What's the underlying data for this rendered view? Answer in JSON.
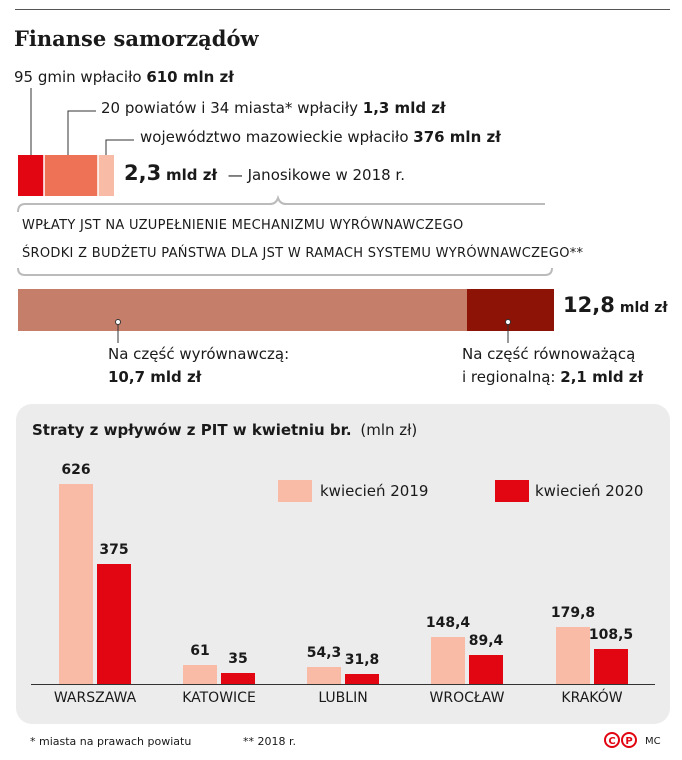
{
  "title": "Finanse samorządów",
  "janosik": {
    "items": [
      {
        "text": "95 gmin wpłaciło ",
        "value": "610 mln zł",
        "color": "#e20613"
      },
      {
        "text": "20 powiatów i 34 miasta* wpłaciły ",
        "value": "1,3 mld zł",
        "color": "#ee7356"
      },
      {
        "text": "województwo mazowieckie wpłaciło ",
        "value": "376 mln zł",
        "color": "#f7bba6"
      }
    ],
    "total_value": "2,3",
    "total_unit": "mld zł",
    "total_text": "— Janosikowe w 2018 r."
  },
  "mechanism": {
    "line1": "WPŁATY JST NA UZUPEŁNIENIE MECHANIZMU WYRÓWNAWCZEGO",
    "line2": "ŚRODKI Z BUDŻETU PAŃSTWA DLA JST W RAMACH SYSTEMU WYRÓWNAWCZEGO**",
    "total_value": "12,8",
    "total_unit": "mld zł",
    "segments": [
      {
        "label": "Na część wyrównawczą:",
        "value": "10,7 mld zł",
        "amount": 10.7,
        "color": "#c47e6a"
      },
      {
        "label_1": "Na część równoważącą",
        "label_2": "i regionalną:",
        "value": "2,1 mld zł",
        "amount": 2.1,
        "color": "#8c1306"
      }
    ]
  },
  "chart_data": {
    "type": "bar",
    "title": "Straty z wpływów z PIT w kwietniu br.",
    "unit": "(mln zł)",
    "categories": [
      "WARSZAWA",
      "KATOWICE",
      "LUBLIN",
      "WROCŁAW",
      "KRAKÓW"
    ],
    "series": [
      {
        "name": "kwiecień 2019",
        "values": [
          626,
          61,
          54.3,
          148.4,
          179.8
        ],
        "labels": [
          "626",
          "61",
          "54,3",
          "148,4",
          "179,8"
        ],
        "color": "#f9bba6"
      },
      {
        "name": "kwiecień 2020",
        "values": [
          375,
          35,
          31.8,
          89.4,
          108.5
        ],
        "labels": [
          "375",
          "35",
          "31,8",
          "89,4",
          "108,5"
        ],
        "color": "#e20613"
      }
    ],
    "ylim": [
      0,
      626
    ],
    "legend": "top-right",
    "grid": false
  },
  "footnotes": {
    "note1": "* miasta na prawach powiatu",
    "note2": "** 2018 r.",
    "credit": "MC"
  }
}
